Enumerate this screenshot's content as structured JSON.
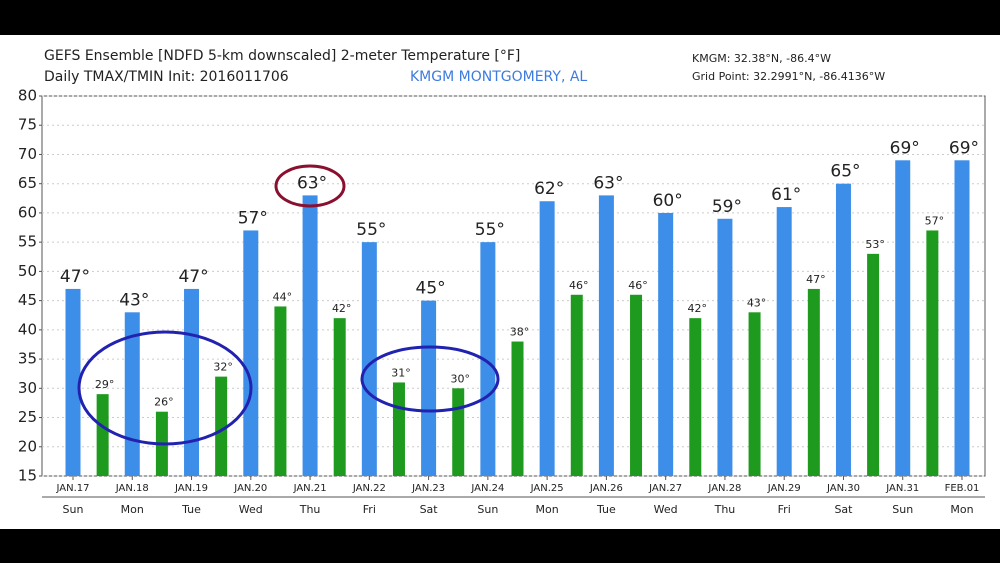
{
  "chart_data": {
    "type": "bar",
    "title": "GEFS Ensemble [NDFD 5-km downscaled] 2-meter Temperature [°F]",
    "subtitle": "Daily TMAX/TMIN Init: 2016011706",
    "location": "KMGM MONTGOMERY, AL",
    "station": "KMGM: 32.38°N, -86.4°W",
    "grid_point": "Grid Point: 32.2991°N, -86.4136°W",
    "categories": [
      "JAN.17",
      null,
      "JAN.18",
      null,
      "JAN.19",
      null,
      "JAN.20",
      null,
      "JAN.21",
      null,
      "JAN.22",
      null,
      "JAN.23",
      null,
      "JAN.24",
      null,
      "JAN.25",
      null,
      "JAN.26",
      null,
      "JAN.27",
      null,
      "JAN.28",
      null,
      "JAN.29",
      null,
      "JAN.30",
      null,
      "JAN.31",
      null,
      "FEB.01"
    ],
    "weekdays": [
      "Sun",
      null,
      "Mon",
      null,
      "Tue",
      null,
      "Wed",
      null,
      "Thu",
      null,
      "Fri",
      null,
      "Sat",
      null,
      "Sun",
      null,
      "Mon",
      null,
      "Tue",
      null,
      "Wed",
      null,
      "Thu",
      null,
      "Fri",
      null,
      "Sat",
      null,
      "Sun",
      null,
      "Mon"
    ],
    "series": [
      {
        "color": "#3d8ee8",
        "values": [
          47,
          null,
          43,
          null,
          47,
          null,
          57,
          null,
          63,
          null,
          55,
          null,
          45,
          null,
          55,
          null,
          62,
          null,
          63,
          null,
          60,
          null,
          59,
          null,
          61,
          null,
          65,
          null,
          69,
          null,
          69
        ],
        "value_labels": [
          "47°",
          null,
          "43°",
          null,
          "47°",
          null,
          "57°",
          null,
          "63°",
          null,
          "55°",
          null,
          "45°",
          null,
          "55°",
          null,
          "62°",
          null,
          "63°",
          null,
          "60°",
          null,
          "59°",
          null,
          "61°",
          null,
          "65°",
          null,
          "69°",
          null,
          "69°"
        ]
      },
      {
        "color": "#1e9a1e",
        "values": [
          null,
          29,
          null,
          26,
          null,
          32,
          null,
          44,
          null,
          42,
          null,
          31,
          null,
          30,
          null,
          38,
          null,
          46,
          null,
          46,
          null,
          42,
          null,
          43,
          null,
          47,
          null,
          53,
          null,
          57,
          null
        ],
        "value_labels": [
          null,
          "29°",
          null,
          "26°",
          null,
          "32°",
          null,
          "44°",
          null,
          "42°",
          null,
          "31°",
          null,
          "30°",
          null,
          "38°",
          null,
          "46°",
          null,
          "46°",
          null,
          "42°",
          null,
          "43°",
          null,
          "47°",
          null,
          "53°",
          null,
          "57°",
          null
        ]
      }
    ],
    "ylim": [
      15,
      80
    ],
    "yticks": [
      15,
      20,
      25,
      30,
      35,
      40,
      45,
      50,
      55,
      60,
      65,
      70,
      75,
      80
    ],
    "grid": true
  }
}
